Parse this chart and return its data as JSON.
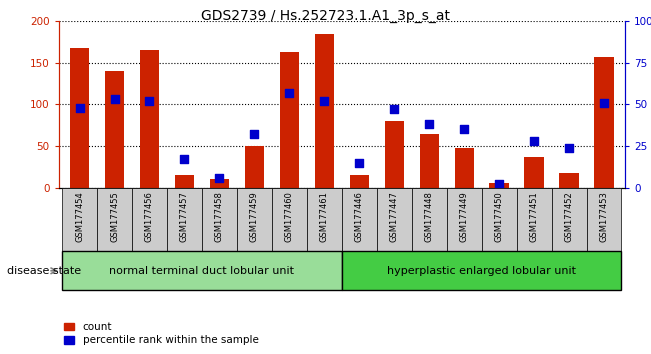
{
  "title": "GDS2739 / Hs.252723.1.A1_3p_s_at",
  "samples": [
    "GSM177454",
    "GSM177455",
    "GSM177456",
    "GSM177457",
    "GSM177458",
    "GSM177459",
    "GSM177460",
    "GSM177461",
    "GSM177446",
    "GSM177447",
    "GSM177448",
    "GSM177449",
    "GSM177450",
    "GSM177451",
    "GSM177452",
    "GSM177453"
  ],
  "counts": [
    168,
    140,
    165,
    15,
    10,
    50,
    163,
    185,
    15,
    80,
    65,
    48,
    5,
    37,
    18,
    157
  ],
  "percentiles": [
    48,
    53,
    52,
    17,
    6,
    32,
    57,
    52,
    15,
    47,
    38,
    35,
    2,
    28,
    24,
    51
  ],
  "group1_label": "normal terminal duct lobular unit",
  "group2_label": "hyperplastic enlarged lobular unit",
  "group1_count": 8,
  "group2_count": 8,
  "bar_color": "#cc2200",
  "dot_color": "#0000cc",
  "group1_bg": "#99dd99",
  "group2_bg": "#44cc44",
  "tick_bg": "#cccccc",
  "ylim_left": [
    0,
    200
  ],
  "ylim_right": [
    0,
    100
  ],
  "yticks_left": [
    0,
    50,
    100,
    150,
    200
  ],
  "yticks_right": [
    0,
    25,
    50,
    75,
    100
  ],
  "ytick_labels_right": [
    "0",
    "25",
    "50",
    "75",
    "100%"
  ],
  "bar_width": 0.55,
  "dot_size": 40,
  "legend_count_label": "count",
  "legend_pct_label": "percentile rank within the sample"
}
